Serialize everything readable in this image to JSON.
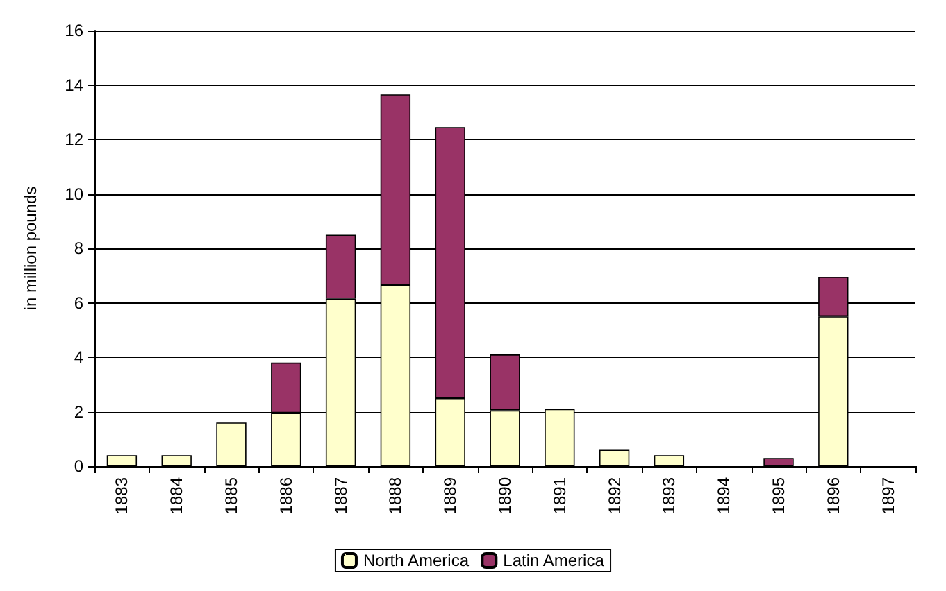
{
  "chart_data": {
    "type": "bar",
    "stacked": true,
    "ylabel": "in million pounds",
    "categories": [
      "1883",
      "1884",
      "1885",
      "1886",
      "1887",
      "1888",
      "1889",
      "1890",
      "1891",
      "1892",
      "1893",
      "1894",
      "1895",
      "1896",
      "1897"
    ],
    "series": [
      {
        "name": "North America",
        "color": "#ffffcc",
        "values": [
          0.4,
          0.4,
          1.6,
          1.95,
          6.15,
          6.65,
          2.5,
          2.05,
          2.1,
          0.6,
          0.4,
          0,
          0,
          5.5,
          0
        ]
      },
      {
        "name": "Latin America",
        "color": "#993366",
        "values": [
          0,
          0,
          0,
          1.85,
          2.35,
          7.0,
          9.95,
          2.05,
          0,
          0,
          0,
          0,
          0.3,
          1.45,
          0
        ]
      }
    ],
    "ylim": [
      0,
      16
    ],
    "yticks": [
      0,
      2,
      4,
      6,
      8,
      10,
      12,
      14,
      16
    ],
    "grid": "y",
    "legend": "bottom"
  }
}
